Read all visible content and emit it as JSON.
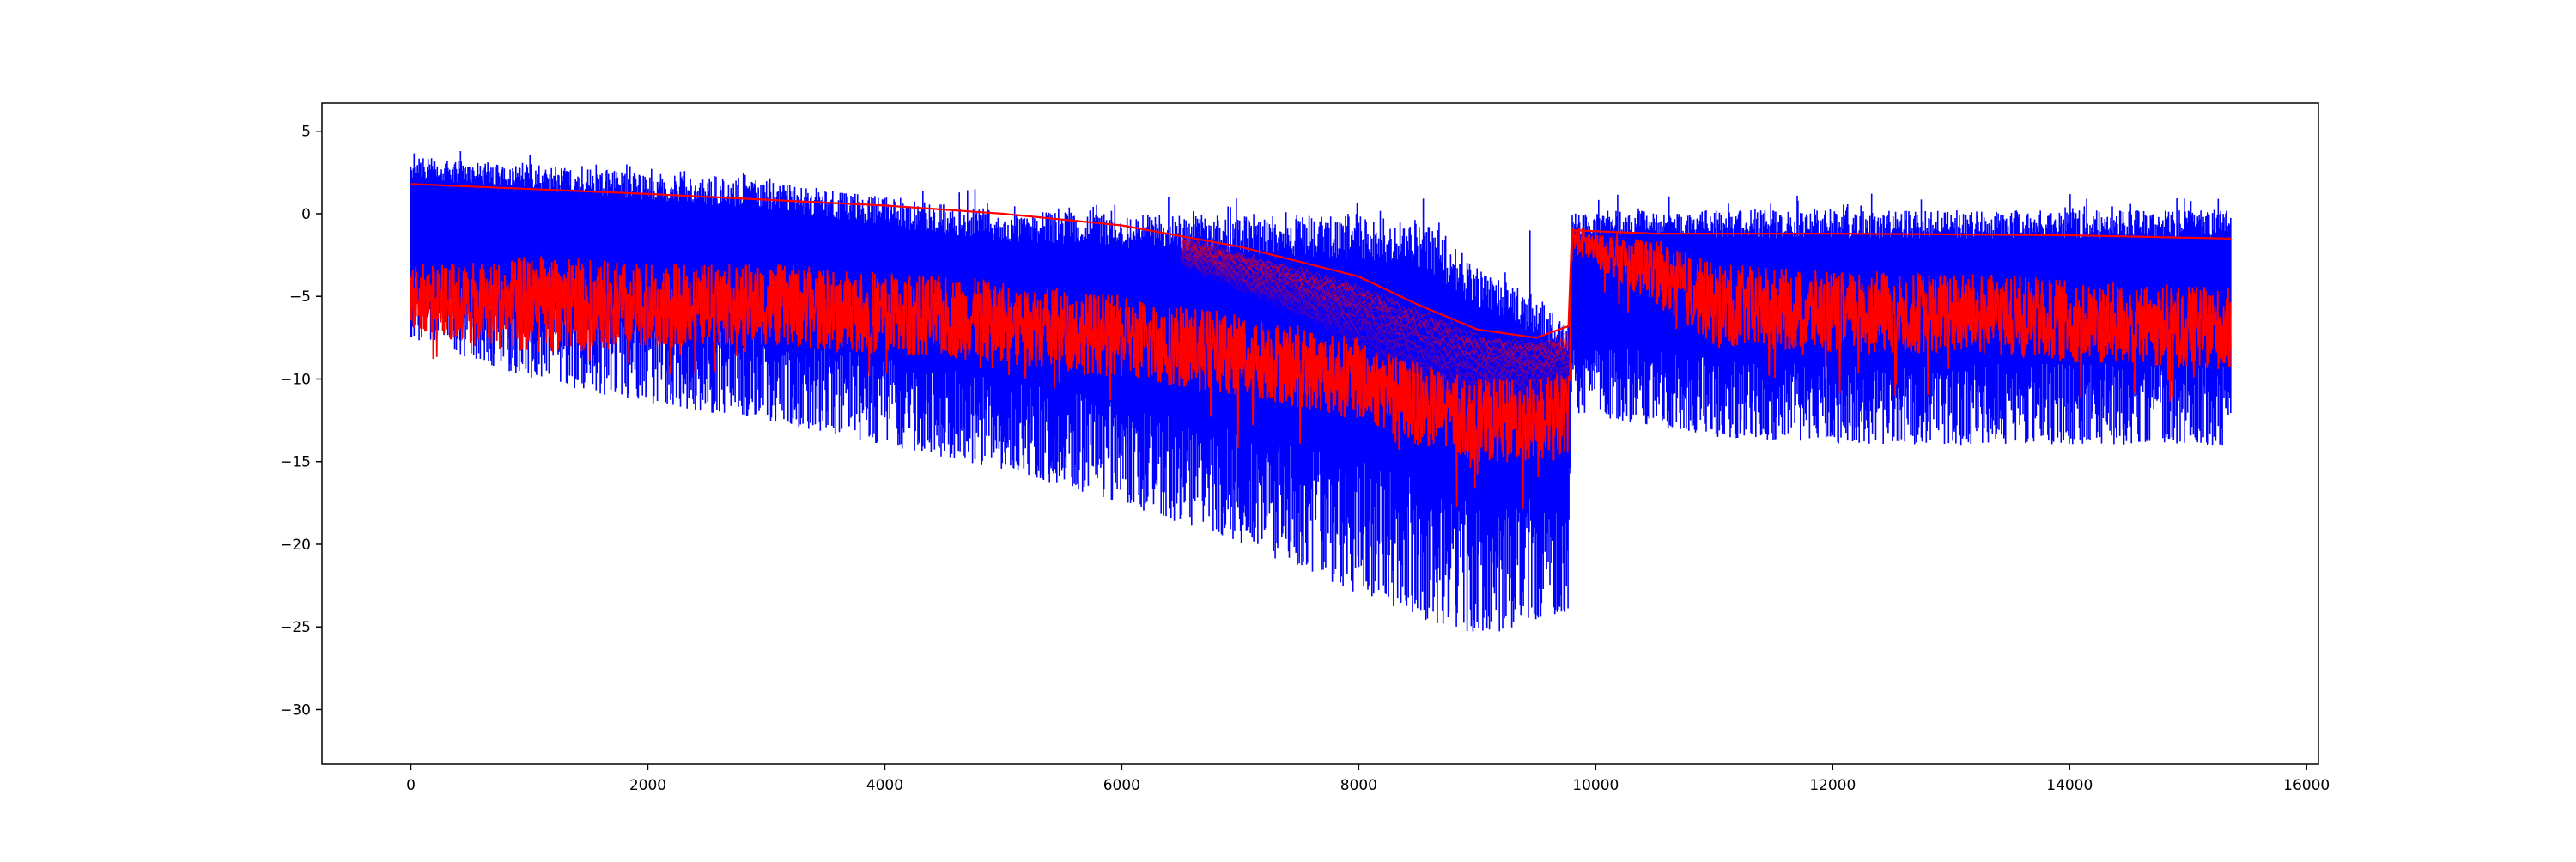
{
  "chart_data": {
    "type": "line",
    "title": "",
    "xlabel": "",
    "ylabel": "",
    "xlim": [
      -750,
      16100
    ],
    "ylim": [
      -33.3,
      6.7
    ],
    "xticks": [
      0,
      2000,
      4000,
      6000,
      8000,
      10000,
      12000,
      14000,
      16000
    ],
    "yticks": [
      5,
      0,
      -5,
      -10,
      -15,
      -20,
      -25,
      -30
    ],
    "xtick_labels": [
      "0",
      "2000",
      "4000",
      "6000",
      "8000",
      "10000",
      "12000",
      "14000",
      "16000"
    ],
    "ytick_labels": [
      "5",
      "0",
      "−5",
      "−10",
      "−15",
      "−20",
      "−25",
      "−30"
    ],
    "grid": false,
    "legend": "none",
    "n_points": 15360,
    "colors": {
      "blue": "#0000ff",
      "red": "#ff0000",
      "axes": "#000000"
    },
    "series": [
      {
        "color": "blue",
        "style": "dense spiky fill",
        "x": [
          0,
          1000,
          2000,
          3000,
          4000,
          5000,
          6000,
          7000,
          8000,
          8500,
          9000,
          9500,
          9770,
          9800,
          11000,
          12000,
          13000,
          14000,
          15360
        ],
        "upper": [
          3.5,
          3.0,
          2.5,
          2.0,
          1.0,
          0.2,
          0.0,
          0.0,
          0.0,
          -0.3,
          -3.0,
          -5.0,
          -6.5,
          0.2,
          0.2,
          0.2,
          0.2,
          0.2,
          0.2
        ],
        "lower": [
          -7.5,
          -10.0,
          -11.5,
          -12.5,
          -14.0,
          -15.5,
          -17.5,
          -20.0,
          -23.0,
          -24.5,
          -25.5,
          -25.0,
          -24.0,
          -12.0,
          -13.5,
          -14.0,
          -14.0,
          -14.0,
          -14.0
        ]
      },
      {
        "color": "red",
        "style": "upper envelope line",
        "x": [
          0,
          2000,
          4000,
          5000,
          6000,
          7000,
          8000,
          8500,
          9000,
          9500,
          9770,
          9800,
          10500,
          12000,
          14000,
          15360
        ],
        "y": [
          1.8,
          1.2,
          0.5,
          0.0,
          -0.7,
          -2.0,
          -3.8,
          -5.5,
          -7.0,
          -7.5,
          -6.8,
          -1.0,
          -1.2,
          -1.2,
          -1.3,
          -1.5
        ]
      },
      {
        "color": "red",
        "style": "fading band (many faint series)",
        "x": [
          6500,
          7000,
          7500,
          8000,
          8500,
          9000,
          9500,
          9770
        ],
        "upper": [
          -1.5,
          -2.5,
          -3.5,
          -4.5,
          -6.0,
          -7.5,
          -8.0,
          -7.5
        ],
        "lower": [
          -3.0,
          -4.5,
          -6.0,
          -8.0,
          -10.5,
          -11.5,
          -11.0,
          -10.0
        ]
      },
      {
        "color": "red",
        "style": "dense noisy line",
        "x": [
          0,
          500,
          1000,
          2000,
          3000,
          4000,
          5000,
          6000,
          7000,
          8000,
          8500,
          9000,
          9500,
          9770,
          9800,
          10500,
          11000,
          12000,
          13000,
          14000,
          15360
        ],
        "center": [
          -5.0,
          -5.5,
          -5.5,
          -5.5,
          -5.5,
          -6.0,
          -6.5,
          -7.5,
          -8.5,
          -10.0,
          -11.5,
          -12.5,
          -12.5,
          -12.0,
          -1.5,
          -3.5,
          -5.5,
          -6.0,
          -6.0,
          -6.5,
          -7.0
        ],
        "amplitude": [
          2.0,
          2.5,
          3.0,
          2.5,
          2.5,
          2.5,
          2.5,
          2.5,
          2.5,
          2.5,
          2.5,
          2.5,
          2.5,
          2.5,
          0.8,
          2.0,
          2.5,
          2.5,
          2.5,
          2.5,
          2.5
        ]
      }
    ]
  }
}
